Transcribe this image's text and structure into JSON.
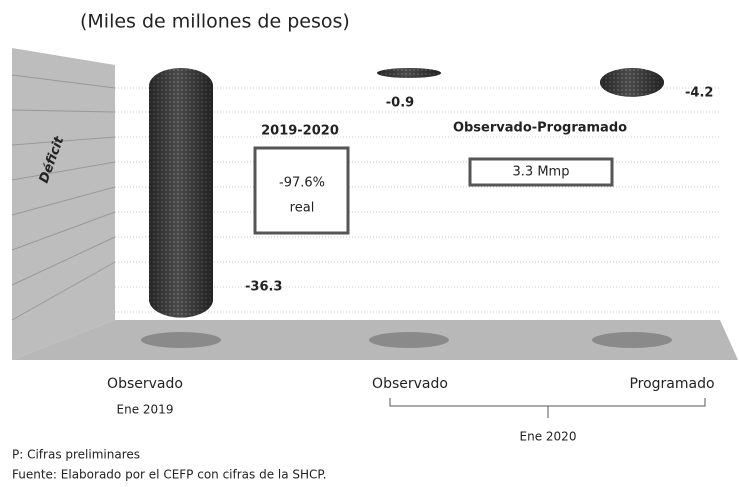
{
  "chart_data": {
    "type": "bar",
    "subtitle": "(Miles de millones de pesos)",
    "y_label": "Déficit",
    "categories": [
      "Observado",
      "Observado",
      "Programado"
    ],
    "group_labels": [
      "Ene 2019",
      "Ene 2020"
    ],
    "values": [
      -36.3,
      -0.9,
      -4.2
    ],
    "color": "#555555",
    "ylim": [
      -40,
      0
    ],
    "annotations": [
      "2019-2020",
      "-97.6%",
      "real",
      "Observado-Programado",
      "3.3 Mmp"
    ],
    "notes": [
      "P: Cifras preliminares",
      "Fuente: Elaborado por el CEFP con cifras de la SHCP."
    ]
  }
}
